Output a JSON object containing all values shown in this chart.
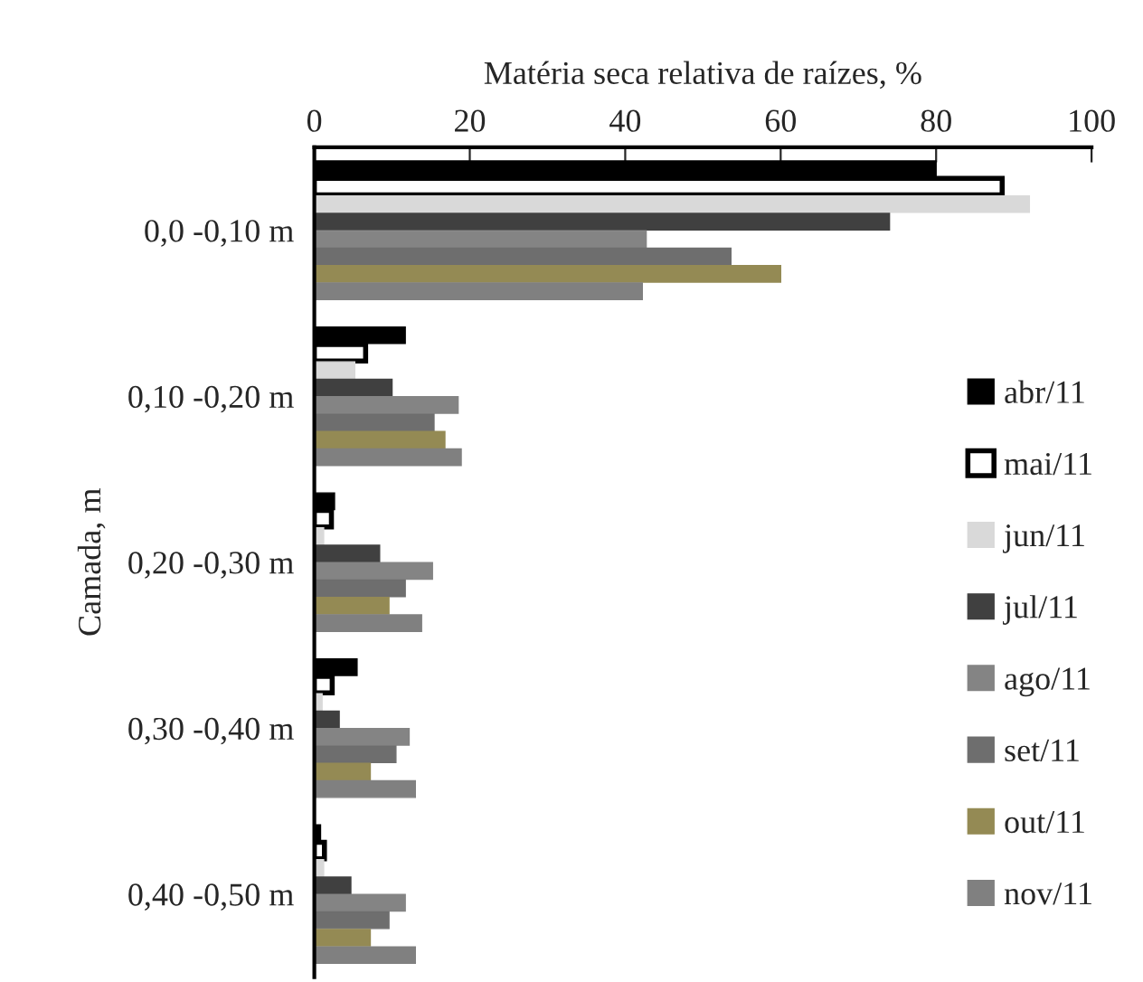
{
  "chart_data": {
    "type": "bar",
    "orientation": "horizontal",
    "xlabel": "Matéria seca relativa de raízes, %",
    "ylabel": "Camada, m",
    "categories": [
      "0,0 -0,10 m",
      "0,10 -0,20 m",
      "0,20 -0,30 m",
      "0,30 -0,40 m",
      "0,40 -0,50 m"
    ],
    "series": [
      {
        "name": "abr/11",
        "color": "#000000",
        "values": [
          80,
          11.7,
          2.6,
          5.5,
          0.8
        ]
      },
      {
        "name": "mai/11",
        "color": "#ffffff",
        "values": [
          88.5,
          6.6,
          2.2,
          2.3,
          1.3
        ]
      },
      {
        "name": "jun/11",
        "color": "#d9d9d9",
        "values": [
          92,
          5.2,
          1.2,
          1,
          1.2
        ]
      },
      {
        "name": "jul/11",
        "color": "#404040",
        "values": [
          74,
          10,
          8.4,
          3.2,
          4.7
        ]
      },
      {
        "name": "ago/11",
        "color": "#848484",
        "values": [
          42.7,
          18.5,
          15.2,
          12.2,
          11.7
        ]
      },
      {
        "name": "set/11",
        "color": "#6e6e6e",
        "values": [
          53.6,
          15.4,
          11.7,
          10.5,
          9.6
        ]
      },
      {
        "name": "out/11",
        "color": "#948a54",
        "values": [
          60,
          16.8,
          9.6,
          7.2,
          7.2
        ]
      },
      {
        "name": "nov/11",
        "color": "#808080",
        "values": [
          42.2,
          18.9,
          13.8,
          13,
          13
        ]
      }
    ],
    "xlim": [
      0,
      100
    ],
    "xticks": [
      0,
      20,
      40,
      60,
      80,
      100
    ],
    "grid": false,
    "legend": "right"
  }
}
